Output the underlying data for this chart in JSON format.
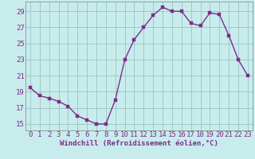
{
  "x": [
    0,
    1,
    2,
    3,
    4,
    5,
    6,
    7,
    8,
    9,
    10,
    11,
    12,
    13,
    14,
    15,
    16,
    17,
    18,
    19,
    20,
    21,
    22,
    23
  ],
  "y": [
    19.5,
    18.5,
    18.2,
    17.8,
    17.2,
    16.0,
    15.5,
    15.0,
    15.0,
    18.0,
    23.0,
    25.5,
    27.0,
    28.5,
    29.5,
    29.0,
    29.0,
    27.5,
    27.2,
    28.8,
    28.6,
    26.0,
    23.0,
    21.0
  ],
  "line_color": "#7b2d8b",
  "marker_color": "#7b2d8b",
  "bg_color": "#c8ecec",
  "grid_color": "#a0c8c8",
  "xlabel": "Windchill (Refroidissement éolien,°C)",
  "yticks": [
    15,
    17,
    19,
    21,
    23,
    25,
    27,
    29
  ],
  "xticks": [
    0,
    1,
    2,
    3,
    4,
    5,
    6,
    7,
    8,
    9,
    10,
    11,
    12,
    13,
    14,
    15,
    16,
    17,
    18,
    19,
    20,
    21,
    22,
    23
  ],
  "ylim": [
    14.2,
    30.2
  ],
  "xlim": [
    -0.5,
    23.5
  ],
  "xlabel_fontsize": 6.5,
  "tick_fontsize": 6.5,
  "line_width": 1.0,
  "marker_size": 2.5
}
